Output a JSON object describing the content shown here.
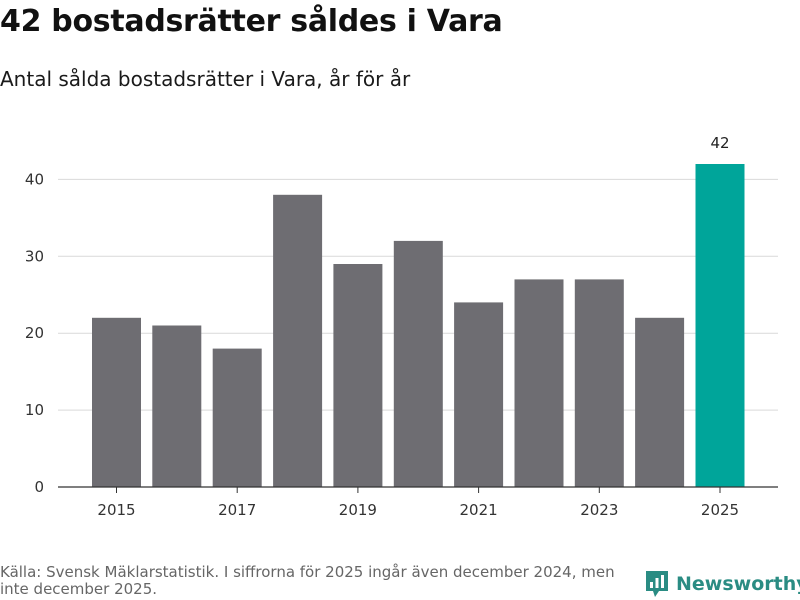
{
  "header": {
    "title": "42 bostadsrätter såldes i Vara",
    "subtitle": "Antal sålda bostadsrätter i Vara, år för år"
  },
  "colors": {
    "bar": "#6e6d72",
    "highlight": "#00a59a",
    "grid": "#d9d9d9",
    "axis": "#333333",
    "brand": "#2a8c83"
  },
  "chart_data": {
    "type": "bar",
    "title": "42 bostadsrätter såldes i Vara",
    "subtitle": "Antal sålda bostadsrätter i Vara, år för år",
    "xlabel": "",
    "ylabel": "",
    "categories": [
      "2015",
      "2016",
      "2017",
      "2018",
      "2019",
      "2020",
      "2021",
      "2022",
      "2023",
      "2024",
      "2025"
    ],
    "values": [
      22,
      21,
      18,
      38,
      29,
      32,
      24,
      27,
      27,
      22,
      42
    ],
    "highlight_index": 10,
    "data_labels": [
      {
        "index": 10,
        "text": "42"
      }
    ],
    "x_tick_labels": [
      "2015",
      "2017",
      "2019",
      "2021",
      "2023",
      "2025"
    ],
    "y_ticks": [
      0,
      10,
      20,
      30,
      40
    ],
    "ylim": [
      0,
      42
    ],
    "grid": true,
    "legend": "none"
  },
  "footer": {
    "source": "Källa: Svensk Mäklarstatistik. I siffrorna för 2025 ingår även december 2024, men inte december 2025.",
    "brand": "Newsworthy"
  },
  "icons": {
    "brand": "newsworthy-logo-icon"
  }
}
